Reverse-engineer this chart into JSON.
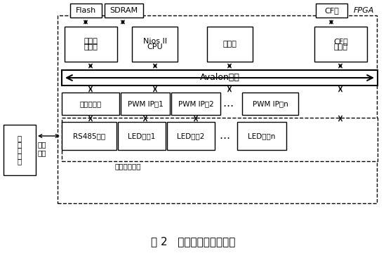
{
  "title": "图 2   控制器硬件结构框图",
  "fpga_label": "FPGA",
  "flash_label": "Flash",
  "sdram_label": "SDRAM",
  "cf_top_label": "CF卡",
  "mem_ctrl_lines": [
    "存储器",
    "控制器"
  ],
  "nios_lines": [
    "Nios II",
    "CPU"
  ],
  "timer_label": "定时器",
  "cf_ctrl_lines": [
    "CF卡",
    "控制器"
  ],
  "avalon_label": "Avalon总线",
  "serial_ctrl_label": "串口控制器",
  "pwm1_label": "PWM IP梸1",
  "pwm2_label": "PWM IP梸2",
  "pwmn_label": "PWM IP梸n",
  "rs485_label": "RS485控制",
  "led1_label": "LED模块1",
  "led2_label": "LED模块2",
  "ledn_label": "LED模块n",
  "disp_label": "显示驱动模块",
  "computer_lines": [
    "计",
    "算",
    "机",
    "系",
    "统"
  ],
  "serial_comm": "串口\n通信",
  "dots": "…"
}
